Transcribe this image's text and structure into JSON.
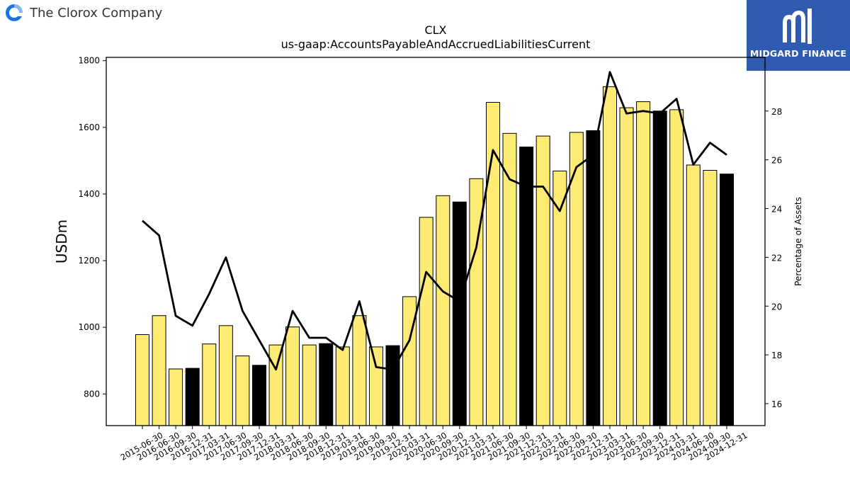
{
  "brand": {
    "name": "The Clorox Company"
  },
  "badge": {
    "label": "MIDGARD FINANCE"
  },
  "colors": {
    "bar_normal": "#fdeb73",
    "bar_q4": "#000000",
    "line": "#000000"
  },
  "chart_data": {
    "type": "bar",
    "title": "CLX",
    "subtitle": "us-gaap:AccountsPayableAndAccruedLiabilitiesCurrent",
    "ylabel": "USDm",
    "y2label": "Percentage of Assets",
    "ylim": [
      705,
      1810
    ],
    "y2lim": [
      15.1,
      30.2
    ],
    "yticks": [
      800,
      1000,
      1200,
      1400,
      1600,
      1800
    ],
    "y2ticks": [
      16,
      18,
      20,
      22,
      24,
      26,
      28
    ],
    "categories": [
      "2015-06-30",
      "2016-06-30",
      "2016-09-30",
      "2016-12-31",
      "2017-03-31",
      "2017-06-30",
      "2017-09-30",
      "2017-12-31",
      "2018-03-31",
      "2018-06-30",
      "2018-09-30",
      "2018-12-31",
      "2019-03-31",
      "2019-06-30",
      "2019-09-30",
      "2019-12-31",
      "2020-03-31",
      "2020-06-30",
      "2020-09-30",
      "2020-12-31",
      "2021-03-31",
      "2021-06-30",
      "2021-09-30",
      "2021-12-31",
      "2022-03-31",
      "2022-06-30",
      "2022-09-30",
      "2022-12-31",
      "2023-03-31",
      "2023-06-30",
      "2023-09-30",
      "2023-12-31",
      "2024-03-31",
      "2024-06-30",
      "2024-09-30",
      "2024-12-31"
    ],
    "series": [
      {
        "type": "bar",
        "values": [
          978,
          1035,
          875,
          877,
          950,
          1005,
          914,
          886,
          947,
          1001,
          947,
          951,
          941,
          1035,
          941,
          945,
          1092,
          1330,
          1395,
          1376,
          1446,
          1675,
          1582,
          1541,
          1574,
          1469,
          1585,
          1590,
          1722,
          1659,
          1677,
          1649,
          1653,
          1487,
          1471,
          1460
        ],
        "highlight": [
          false,
          false,
          false,
          true,
          false,
          false,
          false,
          true,
          false,
          false,
          false,
          true,
          false,
          false,
          false,
          true,
          false,
          false,
          false,
          true,
          false,
          false,
          false,
          true,
          false,
          false,
          false,
          true,
          false,
          false,
          false,
          true,
          false,
          false,
          false,
          true
        ]
      },
      {
        "type": "line",
        "axis": "right",
        "values": [
          23.5,
          22.9,
          19.6,
          19.2,
          20.5,
          22.0,
          19.8,
          18.6,
          17.4,
          19.8,
          18.7,
          18.7,
          18.2,
          20.2,
          17.5,
          17.4,
          18.6,
          21.4,
          20.6,
          20.2,
          22.4,
          26.4,
          25.2,
          24.9,
          24.9,
          23.9,
          25.7,
          26.2,
          29.6,
          27.9,
          28.0,
          27.9,
          28.5,
          25.8,
          26.7,
          26.2
        ]
      }
    ]
  }
}
